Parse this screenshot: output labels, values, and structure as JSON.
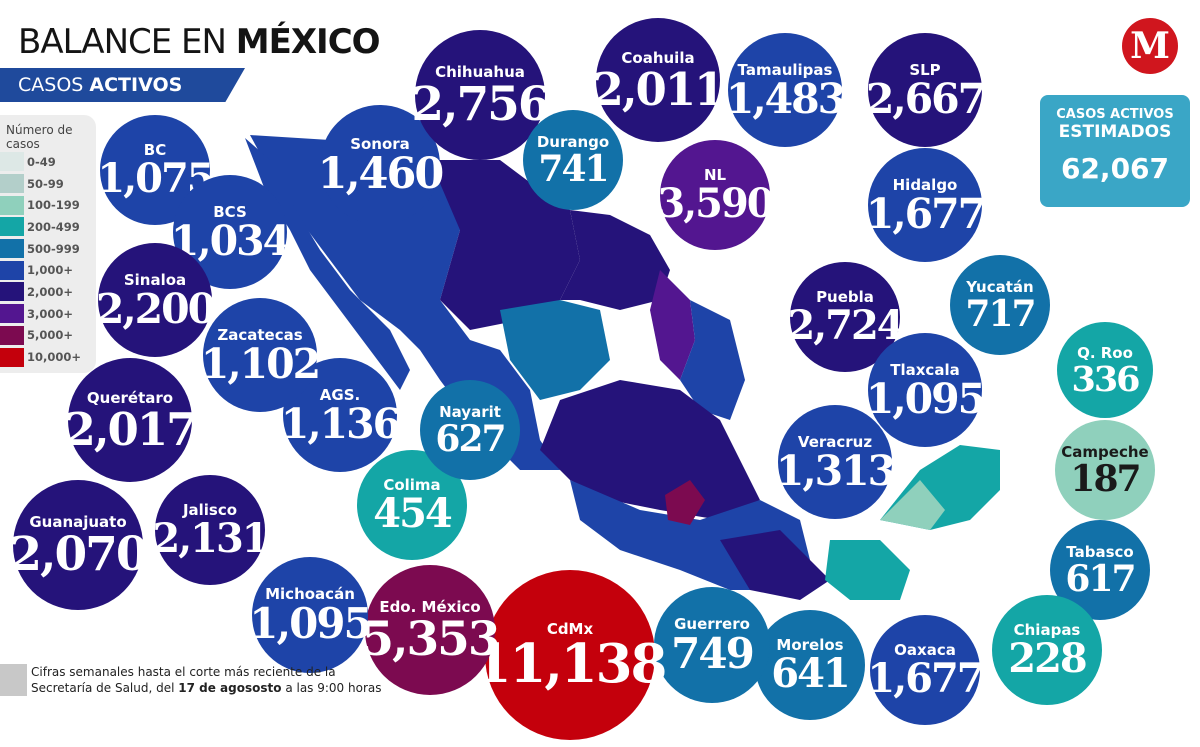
{
  "header": {
    "title_light": "BALANCE EN ",
    "title_bold": "MÉXICO",
    "subtitle_light": "CASOS ",
    "subtitle_bold": "ACTIVOS"
  },
  "legend": {
    "title": "Número de casos",
    "items": [
      {
        "label": "0-49",
        "color": "#dde8e6"
      },
      {
        "label": "50-99",
        "color": "#b3cfca"
      },
      {
        "label": "100-199",
        "color": "#8fd0bc"
      },
      {
        "label": "200-499",
        "color": "#14a6a6"
      },
      {
        "label": "500-999",
        "color": "#1271a8"
      },
      {
        "label": "1,000+",
        "color": "#1e44a8"
      },
      {
        "label": "2,000+",
        "color": "#25137a"
      },
      {
        "label": "3,000+",
        "color": "#531690"
      },
      {
        "label": "5,000+",
        "color": "#7c0a50"
      },
      {
        "label": "10,000+",
        "color": "#c4000c"
      }
    ]
  },
  "estimated": {
    "line1": "CASOS ACTIVOS",
    "line2": "ESTIMADOS",
    "value": "62,067"
  },
  "logo": "M",
  "note": {
    "text1": "Cifras semanales hasta el corte más reciente de la",
    "text2a": "Secretaría de Salud, del ",
    "text2b": "17 de agososto",
    "text2c": " a las 9:00 horas"
  },
  "states": [
    {
      "name": "BC",
      "value": "1,075",
      "range": "1,000+"
    },
    {
      "name": "BCS",
      "value": "1,034",
      "range": "1,000+"
    },
    {
      "name": "Sonora",
      "value": "1,460",
      "range": "1,000+"
    },
    {
      "name": "Chihuahua",
      "value": "2,756",
      "range": "2,000+"
    },
    {
      "name": "Durango",
      "value": "741",
      "range": "500-999"
    },
    {
      "name": "Coahuila",
      "value": "2,011",
      "range": "2,000+"
    },
    {
      "name": "NL",
      "value": "3,590",
      "range": "3,000+"
    },
    {
      "name": "Tamaulipas",
      "value": "1,483",
      "range": "1,000+"
    },
    {
      "name": "SLP",
      "value": "2,667",
      "range": "2,000+"
    },
    {
      "name": "Hidalgo",
      "value": "1,677",
      "range": "1,000+"
    },
    {
      "name": "Puebla",
      "value": "2,724",
      "range": "2,000+"
    },
    {
      "name": "Yucatán",
      "value": "717",
      "range": "500-999"
    },
    {
      "name": "Tlaxcala",
      "value": "1,095",
      "range": "1,000+"
    },
    {
      "name": "Q. Roo",
      "value": "336",
      "range": "200-499"
    },
    {
      "name": "Campeche",
      "value": "187",
      "range": "100-199"
    },
    {
      "name": "Veracruz",
      "value": "1,313",
      "range": "1,000+"
    },
    {
      "name": "Tabasco",
      "value": "617",
      "range": "500-999"
    },
    {
      "name": "Chiapas",
      "value": "228",
      "range": "200-499"
    },
    {
      "name": "Oaxaca",
      "value": "1,677",
      "range": "1,000+"
    },
    {
      "name": "Morelos",
      "value": "641",
      "range": "500-999"
    },
    {
      "name": "Guerrero",
      "value": "749",
      "range": "500-999"
    },
    {
      "name": "CdMx",
      "value": "11,138",
      "range": "10,000+"
    },
    {
      "name": "Edo. México",
      "value": "5,353",
      "range": "5,000+"
    },
    {
      "name": "Michoacán",
      "value": "1,095",
      "range": "1,000+"
    },
    {
      "name": "Colima",
      "value": "454",
      "range": "200-499"
    },
    {
      "name": "Jalisco",
      "value": "2,131",
      "range": "2,000+"
    },
    {
      "name": "Guanajuato",
      "value": "2,070",
      "range": "2,000+"
    },
    {
      "name": "Querétaro",
      "value": "2,017",
      "range": "2,000+"
    },
    {
      "name": "AGS.",
      "value": "1,136",
      "range": "1,000+"
    },
    {
      "name": "Nayarit",
      "value": "627",
      "range": "500-999"
    },
    {
      "name": "Zacatecas",
      "value": "1,102",
      "range": "1,000+"
    },
    {
      "name": "Sinaloa",
      "value": "2,200",
      "range": "2,000+"
    }
  ]
}
